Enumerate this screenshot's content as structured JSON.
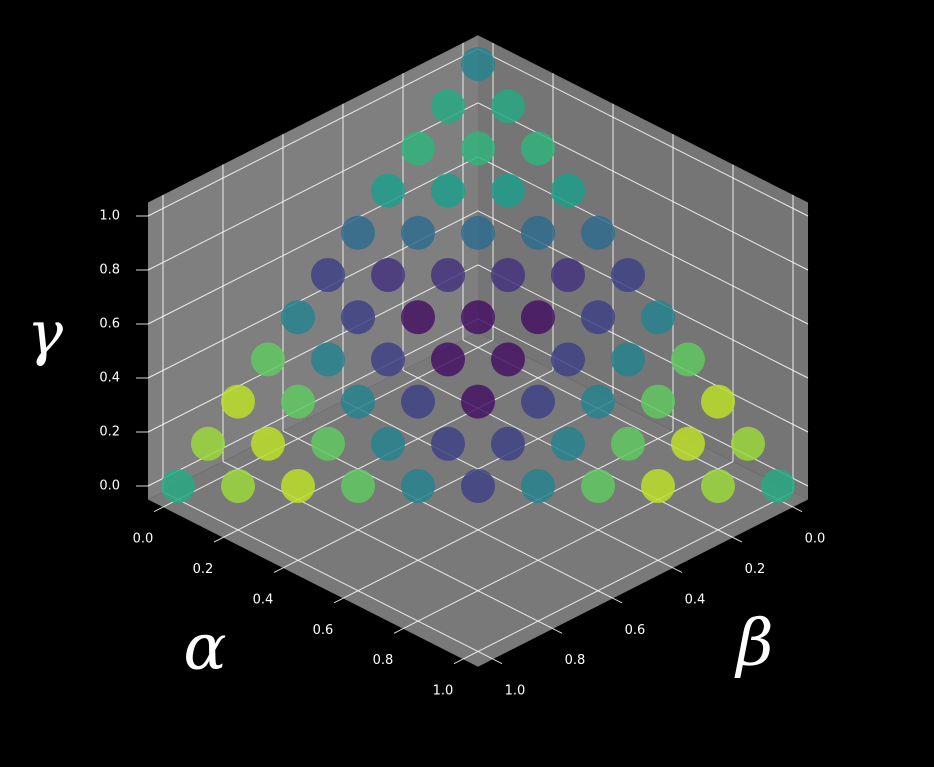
{
  "chart_data": {
    "type": "scatter3d",
    "xlabel": "α",
    "ylabel": "β",
    "zlabel": "γ",
    "xlim": [
      -0.05,
      1.05
    ],
    "ylim": [
      -0.05,
      1.05
    ],
    "zlim": [
      -0.05,
      1.05
    ],
    "xticks": [
      {
        "value": 0,
        "label": "0.0"
      },
      0.2,
      0.4,
      0.6,
      0.8,
      {
        "value": 1,
        "label": "1.0"
      }
    ],
    "yticks": [
      {
        "value": 0,
        "label": "0.0"
      },
      0.2,
      0.4,
      0.6,
      0.8,
      {
        "value": 1,
        "label": "1.0"
      }
    ],
    "zticks": [
      {
        "value": 0,
        "label": "0.0"
      },
      0.2,
      0.4,
      0.6,
      0.8,
      {
        "value": 1,
        "label": "1.0"
      }
    ],
    "grid": true,
    "colormap": "viridis",
    "pane_color": "#7f7f7f",
    "background": "#000000",
    "series": [
      {
        "x": [
          0,
          0.1,
          0.2,
          0.3,
          0.4,
          0.5,
          0.6,
          0.7,
          0.8,
          0.9,
          1,
          0,
          0.1,
          0.2,
          0.3,
          0.4,
          0.5,
          0.6,
          0.7,
          0.8,
          0.9,
          0,
          0.1,
          0.2,
          0.3,
          0.4,
          0.5,
          0.6,
          0.7,
          0.8,
          0,
          0.1,
          0.2,
          0.3,
          0.4,
          0.5,
          0.6,
          0.7,
          0,
          0.1,
          0.2,
          0.3,
          0.4,
          0.5,
          0.6,
          0,
          0.1,
          0.2,
          0.3,
          0.4,
          0.5,
          0,
          0.1,
          0.2,
          0.3,
          0.4,
          0,
          0.1,
          0.2,
          0.3,
          0,
          0.1,
          0.2,
          0,
          0.1,
          0
        ],
        "y": [
          1,
          0.9,
          0.8,
          0.7,
          0.6,
          0.5,
          0.4,
          0.3,
          0.2,
          0.1,
          0,
          0.9,
          0.8,
          0.7,
          0.6,
          0.5,
          0.4,
          0.3,
          0.2,
          0.1,
          0,
          0.8,
          0.7,
          0.6,
          0.5,
          0.4,
          0.3,
          0.2,
          0.1,
          0,
          0.7,
          0.6,
          0.5,
          0.4,
          0.3,
          0.2,
          0.1,
          0,
          0.6,
          0.5,
          0.4,
          0.3,
          0.2,
          0.1,
          0,
          0.5,
          0.4,
          0.3,
          0.2,
          0.1,
          0,
          0.4,
          0.3,
          0.2,
          0.1,
          0,
          0.3,
          0.2,
          0.1,
          0,
          0.2,
          0.1,
          0,
          0.1,
          0,
          0
        ],
        "z": [
          0,
          0,
          0,
          0,
          0,
          0,
          0,
          0,
          0,
          0,
          0,
          0.1,
          0.1,
          0.1,
          0.1,
          0.1,
          0.1,
          0.1,
          0.1,
          0.1,
          0.1,
          0.2,
          0.2,
          0.2,
          0.2,
          0.2,
          0.2,
          0.2,
          0.2,
          0.2,
          0.3,
          0.3,
          0.3,
          0.3,
          0.3,
          0.3,
          0.3,
          0.3,
          0.4,
          0.4,
          0.4,
          0.4,
          0.4,
          0.4,
          0.4,
          0.5,
          0.5,
          0.5,
          0.5,
          0.5,
          0.5,
          0.6,
          0.6,
          0.6,
          0.6,
          0.6,
          0.7,
          0.7,
          0.7,
          0.7,
          0.8,
          0.8,
          0.8,
          0.9,
          0.9,
          1
        ],
        "c": [
          0.6,
          0.85,
          0.9,
          0.75,
          0.45,
          0.2,
          0.45,
          0.75,
          0.9,
          0.85,
          0.6,
          0.85,
          0.9,
          0.75,
          0.45,
          0.2,
          0.2,
          0.45,
          0.75,
          0.9,
          0.85,
          0.9,
          0.75,
          0.45,
          0.2,
          0.05,
          0.2,
          0.45,
          0.75,
          0.9,
          0.75,
          0.45,
          0.2,
          0.05,
          0.05,
          0.2,
          0.45,
          0.75,
          0.45,
          0.2,
          0.05,
          0.05,
          0.05,
          0.2,
          0.45,
          0.2,
          0.15,
          0.15,
          0.15,
          0.15,
          0.2,
          0.35,
          0.35,
          0.35,
          0.35,
          0.35,
          0.55,
          0.55,
          0.55,
          0.55,
          0.65,
          0.65,
          0.65,
          0.6,
          0.6,
          0.45
        ]
      }
    ]
  }
}
